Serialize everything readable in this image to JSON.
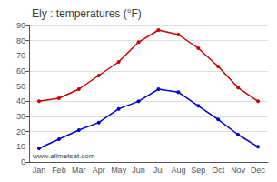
{
  "chart_data": {
    "type": "line",
    "title": "Ely : temperatures (°F)",
    "categories": [
      "Jan",
      "Feb",
      "Mar",
      "Apr",
      "May",
      "Jun",
      "Jul",
      "Aug",
      "Sep",
      "Oct",
      "Nov",
      "Dec"
    ],
    "series": [
      {
        "color": "#cc0000",
        "values": [
          40,
          42,
          48,
          57,
          66,
          79,
          87,
          84,
          75,
          63,
          49,
          40
        ]
      },
      {
        "color": "#0000cc",
        "values": [
          9,
          15,
          21,
          26,
          35,
          40,
          48,
          46,
          37,
          28,
          18,
          10
        ]
      }
    ],
    "marker": "circle",
    "ylim": [
      0,
      90
    ],
    "yticks": [
      0,
      10,
      20,
      30,
      40,
      50,
      60,
      70,
      80,
      90
    ],
    "grid": true,
    "annotations": [
      "www.allmetsat.com"
    ]
  }
}
